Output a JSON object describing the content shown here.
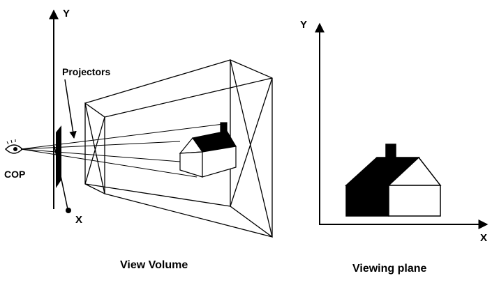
{
  "left_figure": {
    "y_axis_label": "Y",
    "x_axis_label": "X",
    "projectors_label": "Projectors",
    "cop_label": "COP",
    "caption": "View Volume"
  },
  "right_figure": {
    "y_axis_label": "Y",
    "x_axis_label": "X",
    "caption": "Viewing plane"
  },
  "colors": {
    "ink": "#000000",
    "background": "#ffffff"
  }
}
